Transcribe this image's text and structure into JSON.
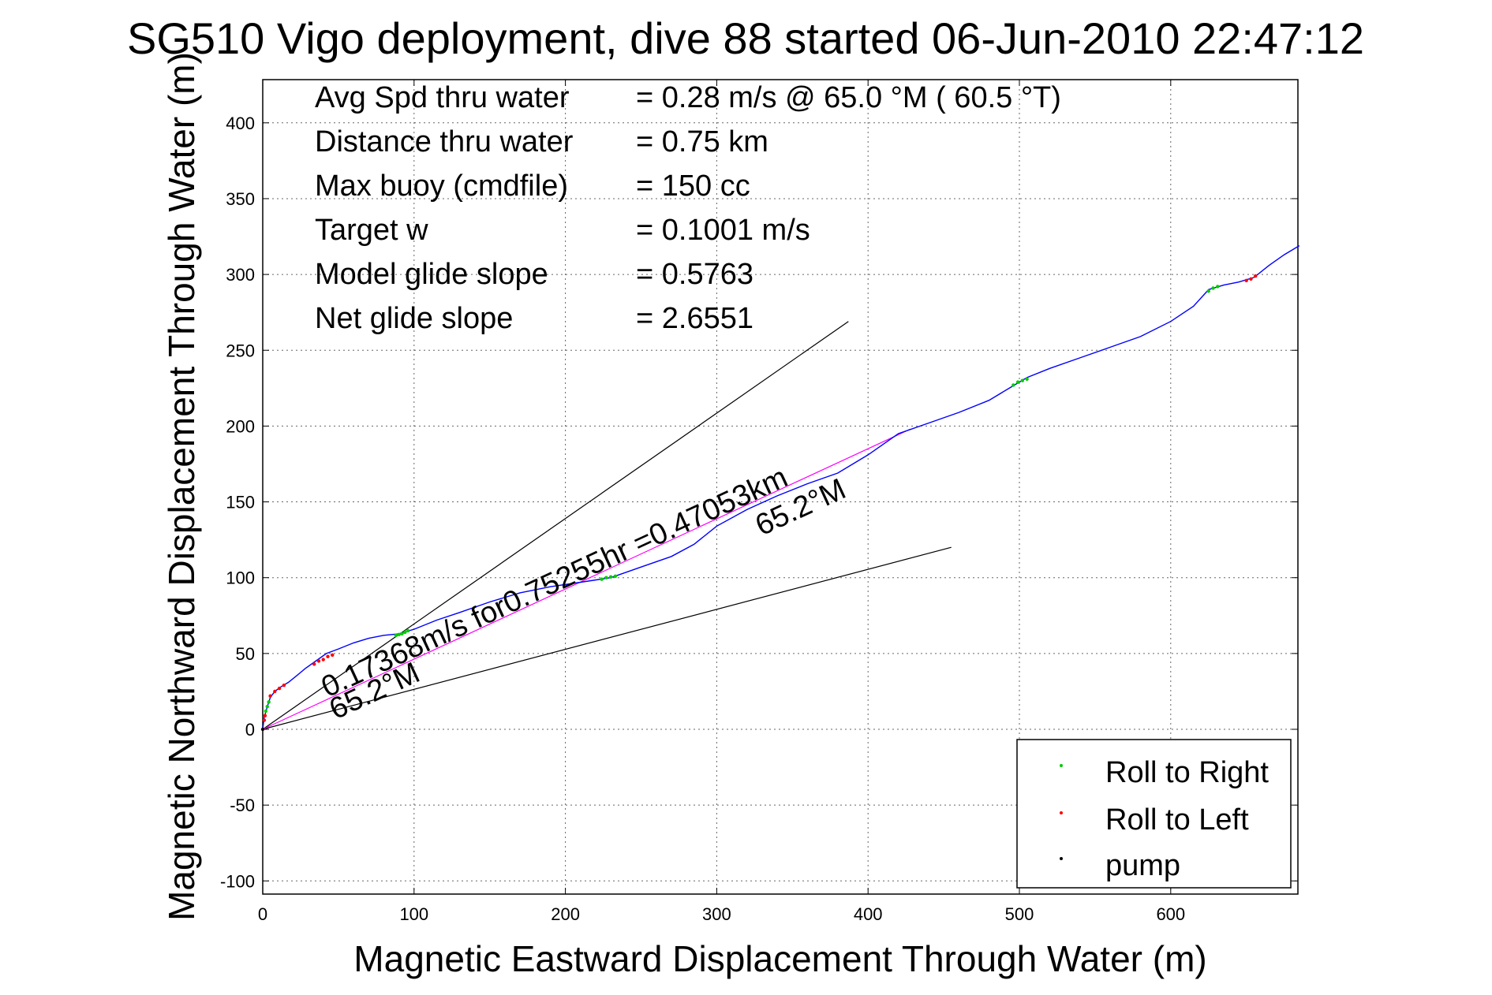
{
  "chart_data": {
    "type": "line",
    "title": "SG510 Vigo deployment, dive 88 started 06-Jun-2010 22:47:12",
    "xlabel": "Magnetic Eastward Displacement Through Water (m)",
    "ylabel": "Magnetic Northward Displacement Through Water (m)",
    "xlim": [
      0,
      685
    ],
    "ylim": [
      -110,
      430
    ],
    "xticks": [
      0,
      100,
      200,
      300,
      400,
      500,
      600
    ],
    "yticks": [
      -100,
      -50,
      0,
      50,
      100,
      150,
      200,
      250,
      300,
      350,
      400
    ],
    "grid": true,
    "legend_position": "bottom-right",
    "info_lines": [
      {
        "label": "Avg Spd thru water",
        "value": "=  0.28 m/s @  65.0 °M ( 60.5 °T)"
      },
      {
        "label": "Distance thru water",
        "value": "=  0.75 km"
      },
      {
        "label": "Max buoy (cmdfile)",
        "value": "= 150 cc"
      },
      {
        "label": "Target w",
        "value": "= 0.1001 m/s"
      },
      {
        "label": "Model glide slope",
        "value": "= 0.5763"
      },
      {
        "label": "Net glide slope",
        "value": "= 2.6551"
      }
    ],
    "annotations": {
      "current_text": "0.17368m/s for0.75255hr =0.47053km",
      "heading_upper": "65.2°M",
      "heading_lower": "65.2°M"
    },
    "track": {
      "color": "#0000ff",
      "x": [
        0,
        1,
        3,
        5,
        8,
        12,
        17,
        22,
        28,
        35,
        42,
        50,
        60,
        70,
        80,
        90,
        100,
        115,
        130,
        150,
        170,
        190,
        210,
        230,
        250,
        270,
        285,
        300,
        320,
        340,
        360,
        380,
        400,
        420,
        440,
        460,
        480,
        495,
        505,
        520,
        540,
        560,
        580,
        600,
        615,
        625,
        635,
        645,
        655,
        665,
        675,
        685
      ],
      "y": [
        0,
        8,
        15,
        21,
        25,
        28,
        31,
        35,
        40,
        45,
        50,
        53,
        57,
        60,
        62,
        63,
        66,
        72,
        77,
        84,
        90,
        94,
        97,
        100,
        107,
        114,
        122,
        134,
        145,
        154,
        162,
        169,
        181,
        195,
        202,
        209,
        217,
        226,
        232,
        238,
        245,
        252,
        259,
        269,
        279,
        290,
        293,
        295,
        298,
        306,
        313,
        319
      ]
    },
    "current_line": {
      "color": "#ff00ff",
      "x": [
        0,
        428
      ],
      "y": [
        0,
        198
      ]
    },
    "cone_upper": {
      "color": "#000000",
      "x": [
        0,
        387
      ],
      "y": [
        0,
        269
      ]
    },
    "cone_lower": {
      "color": "#000000",
      "x": [
        0,
        455
      ],
      "y": [
        0,
        120
      ]
    },
    "series": [
      {
        "name": "Roll to Right",
        "color": "#00cc00",
        "x": [
          2,
          3,
          4,
          88,
          90,
          92,
          94,
          96,
          224,
          227,
          230,
          233,
          496,
          499,
          502,
          505,
          625,
          628,
          631
        ],
        "y": [
          12,
          15,
          18,
          62,
          62.5,
          63,
          64,
          65,
          99,
          100,
          100.5,
          101,
          227,
          229,
          230,
          231,
          289,
          291,
          292
        ]
      },
      {
        "name": "Roll to Left",
        "color": "#ff0000",
        "x": [
          1,
          1.5,
          5,
          8,
          11,
          14,
          34,
          37,
          40,
          43,
          46,
          650,
          653,
          656
        ],
        "y": [
          6,
          9,
          22,
          25,
          27,
          29,
          43,
          45,
          46,
          48,
          49,
          296,
          297,
          299
        ]
      },
      {
        "name": "pump",
        "color": "#000000",
        "x": [
          0
        ],
        "y": [
          0
        ]
      }
    ]
  }
}
